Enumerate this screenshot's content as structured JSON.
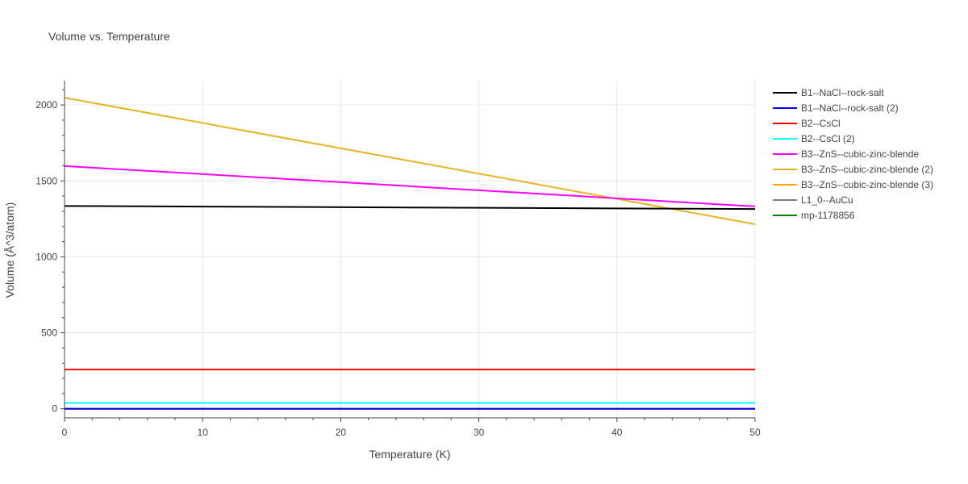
{
  "chart_data": {
    "type": "line",
    "title": "Volume vs. Temperature",
    "xlabel": "Temperature (K)",
    "ylabel": "Volume (Å^3/atom)",
    "xlim": [
      0,
      50
    ],
    "ylim": [
      -60,
      2160
    ],
    "xticks": [
      0,
      10,
      20,
      30,
      40,
      50
    ],
    "yticks": [
      0,
      500,
      1000,
      1500,
      2000
    ],
    "grid": true,
    "legend_position": "right",
    "series": [
      {
        "name": "B1--NaCl--rock-salt",
        "color": "#000000",
        "x": [
          0,
          50
        ],
        "y": [
          1335,
          1315
        ]
      },
      {
        "name": "B1--NaCl--rock-salt (2)",
        "color": "#0000ff",
        "x": [
          0,
          50
        ],
        "y": [
          0,
          0
        ]
      },
      {
        "name": "B2--CsCl",
        "color": "#ff0000",
        "x": [
          0,
          50
        ],
        "y": [
          258,
          258
        ]
      },
      {
        "name": "B2--CsCl (2)",
        "color": "#00ffff",
        "x": [
          0,
          50
        ],
        "y": [
          38,
          38
        ]
      },
      {
        "name": "B3--ZnS--cubic-zinc-blende",
        "color": "#ff00ff",
        "x": [
          0,
          50
        ],
        "y": [
          1598,
          1332
        ]
      },
      {
        "name": "B3--ZnS--cubic-zinc-blende (2)",
        "color": "#e6b422",
        "x": [
          0,
          50
        ],
        "y": [
          2048,
          1215
        ]
      },
      {
        "name": "B3--ZnS--cubic-zinc-blende (3)",
        "color": "#ffa500",
        "x": [
          0,
          50
        ],
        "y": [
          0,
          0
        ]
      },
      {
        "name": "L1_0--AuCu",
        "color": "#808080",
        "x": [
          0,
          50
        ],
        "y": [
          0,
          0
        ]
      },
      {
        "name": "mp-1178856",
        "color": "#008000",
        "x": [
          0,
          50
        ],
        "y": [
          0,
          0
        ]
      }
    ]
  }
}
